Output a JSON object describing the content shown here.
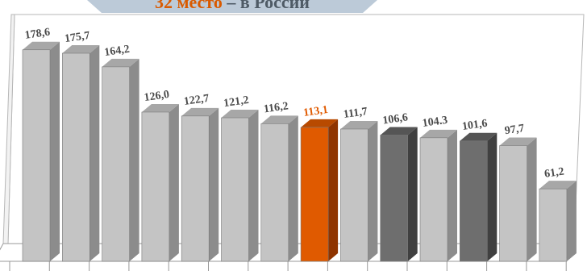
{
  "title": {
    "accent": "32 место",
    "rest": " – в России"
  },
  "colors": {
    "bar_default": "#c4c4c4",
    "bar_dark": "#6e6e6e",
    "bar_highlight": "#e05a00",
    "label_default": "#4a4a4a",
    "label_highlight": "#e05a00",
    "banner": "#bccad8"
  },
  "chart_data": {
    "type": "bar",
    "ylim": [
      0,
      190
    ],
    "grid": false,
    "style": "3d",
    "categories": [],
    "values": [
      178.6,
      175.7,
      164.2,
      126.0,
      122.7,
      121.2,
      116.2,
      113.1,
      111.7,
      106.6,
      104.3,
      101.6,
      97.7,
      61.2
    ],
    "labels": [
      "178,6",
      "175,7",
      "164,2",
      "126,0",
      "122,7",
      "121,2",
      "116,2",
      "113,1",
      "111,7",
      "106,6",
      "104.3",
      "101,6",
      "97,7",
      "61,2"
    ],
    "bar_styles": [
      "default",
      "default",
      "default",
      "default",
      "default",
      "default",
      "default",
      "highlight",
      "default",
      "dark",
      "default",
      "dark",
      "default",
      "default"
    ]
  }
}
